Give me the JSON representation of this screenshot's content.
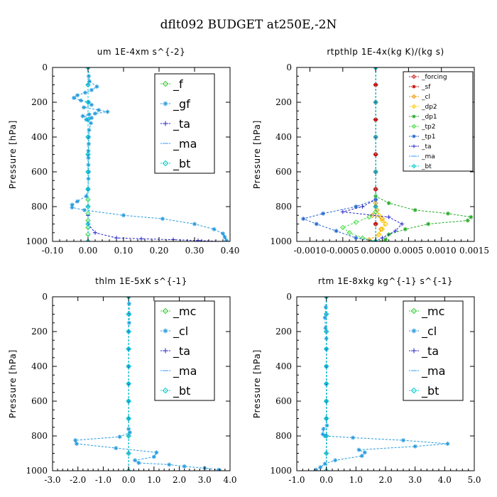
{
  "figure_title": "dflt092  BUDGET at250E,-2N",
  "chart_data": [
    {
      "type": "line",
      "title": "um   1E-4xm s^{-2}",
      "ylabel": "Pressure [hPa]",
      "xlim": [
        -0.1,
        0.4
      ],
      "ylim": [
        1000,
        0
      ],
      "xticks": [
        -0.1,
        0.0,
        0.1,
        0.2,
        0.3,
        0.4
      ],
      "xtick_labels": [
        "-0.10",
        "0.00",
        "0.10",
        "0.20",
        "0.30",
        "0.40"
      ],
      "yticks": [
        0,
        200,
        400,
        600,
        800,
        1000
      ],
      "legend_position": "top-right",
      "series": [
        {
          "name": "_f",
          "color": "#33cc33",
          "marker": "diamond",
          "x": [
            0,
            0,
            0,
            0,
            0,
            0,
            0,
            0,
            0,
            0,
            0,
            0,
            0,
            0,
            0
          ],
          "y": [
            0,
            100,
            200,
            300,
            400,
            500,
            600,
            700,
            760,
            800,
            840,
            880,
            920,
            960,
            1000
          ]
        },
        {
          "name": "_gf",
          "color": "#2299dd",
          "marker": "star",
          "x": [
            0.001,
            0.002,
            0.004,
            0.025,
            0.01,
            -0.008,
            -0.03,
            -0.04,
            -0.02,
            0.002,
            0.01,
            -0.012,
            0.03,
            0.055,
            0.02,
            0.003,
            -0.015,
            0.01,
            -0.005,
            0.008,
            0.003,
            0.002,
            0.002,
            0.001,
            0.001,
            0.001,
            0.002,
            0.001,
            0.0,
            -0.005,
            -0.03,
            -0.045,
            -0.045,
            -0.01,
            0.1,
            0.21,
            0.3,
            0.355,
            0.38,
            0.385,
            0.39
          ],
          "y": [
            0,
            50,
            80,
            110,
            130,
            145,
            160,
            175,
            190,
            200,
            215,
            230,
            245,
            255,
            265,
            270,
            280,
            290,
            300,
            320,
            360,
            400,
            440,
            480,
            520,
            560,
            600,
            640,
            700,
            740,
            770,
            790,
            805,
            820,
            850,
            870,
            900,
            930,
            955,
            975,
            995
          ]
        },
        {
          "name": "_ta",
          "color": "#2222cc",
          "marker": "plus",
          "x": [
            0,
            0,
            0,
            0,
            0,
            0,
            0,
            0,
            0,
            0,
            0,
            0.02,
            0.08,
            0.15,
            0.24,
            0.31,
            0.38
          ],
          "y": [
            0,
            100,
            200,
            300,
            400,
            500,
            600,
            700,
            800,
            850,
            900,
            950,
            980,
            985,
            990,
            995,
            1000
          ]
        },
        {
          "name": "_ma",
          "color": "#3399ff",
          "marker": "dash",
          "x": [
            0,
            0,
            0,
            0,
            0,
            0,
            0,
            0,
            0,
            0,
            0
          ],
          "y": [
            0,
            100,
            200,
            300,
            400,
            500,
            600,
            700,
            800,
            900,
            1000
          ]
        },
        {
          "name": "_bt",
          "color": "#00cccc",
          "marker": "diamond",
          "x": [
            0,
            0,
            0,
            0,
            0,
            0,
            0,
            0,
            0,
            0,
            0
          ],
          "y": [
            0,
            100,
            200,
            300,
            400,
            500,
            600,
            700,
            800,
            900,
            1000
          ]
        }
      ]
    },
    {
      "type": "line",
      "title": "rtpthlp   1E-4x(kg K)/(kg s)",
      "ylabel": "Pressure [hPa]",
      "xlim": [
        -0.0012,
        0.0015
      ],
      "ylim": [
        1000,
        0
      ],
      "xticks": [
        -0.001,
        -0.0005,
        0.0,
        0.0005,
        0.001,
        0.0015
      ],
      "xtick_labels": [
        "-0.0010",
        "-0.0005",
        "0.0000",
        "0.0005",
        "0.0010",
        "0.0015"
      ],
      "yticks": [
        0,
        200,
        400,
        600,
        800,
        1000
      ],
      "legend_position": "top-right",
      "series": [
        {
          "name": "_forcing",
          "color": "#cc2222",
          "marker": "diamond",
          "x": [
            0,
            0,
            0,
            0,
            0,
            0,
            0,
            0,
            0,
            0,
            0
          ],
          "y": [
            0,
            100,
            200,
            300,
            400,
            500,
            600,
            700,
            800,
            900,
            1000
          ]
        },
        {
          "name": "_sf",
          "color": "#cc0000",
          "marker": "star",
          "x": [
            0,
            0,
            0,
            0,
            0,
            0,
            0,
            0,
            0,
            0,
            0
          ],
          "y": [
            0,
            100,
            200,
            300,
            400,
            500,
            600,
            700,
            800,
            900,
            1000
          ]
        },
        {
          "name": "_cl",
          "color": "#ee9900",
          "marker": "diamond",
          "x": [
            0,
            0,
            2e-05,
            -5e-05,
            0.0001,
            0.00015,
            8e-05,
            5e-05,
            -0.0001,
            0
          ],
          "y": [
            0,
            780,
            820,
            850,
            870,
            900,
            930,
            960,
            990,
            1000
          ]
        },
        {
          "name": "_dp2",
          "color": "#ffcc00",
          "marker": "diamond",
          "x": [
            0,
            0,
            5e-05,
            0.0001,
            0.00015,
            0.0001,
            5e-05,
            0
          ],
          "y": [
            0,
            800,
            850,
            880,
            900,
            930,
            960,
            1000
          ]
        },
        {
          "name": "_dp1",
          "color": "#22aa22",
          "marker": "star",
          "x": [
            0,
            0,
            0.0002,
            0.0006,
            0.0011,
            0.00145,
            0.0014,
            0.0008,
            0.00045,
            0.0002,
            0.00015,
            0
          ],
          "y": [
            0,
            740,
            780,
            820,
            840,
            860,
            880,
            900,
            930,
            960,
            990,
            1000
          ]
        },
        {
          "name": "_tp2",
          "color": "#44dd44",
          "marker": "diamond",
          "x": [
            0,
            0,
            -0.0001,
            -0.0003,
            -0.0005,
            -0.0004,
            -0.0002,
            0
          ],
          "y": [
            0,
            830,
            860,
            890,
            920,
            950,
            980,
            1000
          ]
        },
        {
          "name": "_tp1",
          "color": "#2266cc",
          "marker": "star",
          "x": [
            0,
            0,
            -0.0003,
            -0.0008,
            -0.0011,
            -0.0009,
            -0.0006,
            -0.0003,
            0
          ],
          "y": [
            0,
            760,
            800,
            840,
            870,
            900,
            940,
            980,
            1000
          ]
        },
        {
          "name": "_ta",
          "color": "#2222cc",
          "marker": "plus",
          "x": [
            0,
            0,
            -0.0002,
            -0.0005,
            0.0002,
            0.0004,
            0.0003,
            0.0001,
            0
          ],
          "y": [
            0,
            760,
            800,
            830,
            860,
            900,
            940,
            980,
            1000
          ]
        },
        {
          "name": "_ma",
          "color": "#3399ff",
          "marker": "dash",
          "x": [
            0,
            0,
            0,
            0,
            0,
            0
          ],
          "y": [
            0,
            200,
            400,
            600,
            800,
            1000
          ]
        },
        {
          "name": "_bt",
          "color": "#00cccc",
          "marker": "diamond",
          "x": [
            0,
            0,
            0,
            0,
            0,
            0
          ],
          "y": [
            0,
            200,
            400,
            600,
            800,
            1000
          ]
        }
      ]
    },
    {
      "type": "line",
      "title": "thlm   1E-5xK  s^{-1}",
      "ylabel": "Pressure [hPa]",
      "xlim": [
        -3.0,
        4.0
      ],
      "ylim": [
        1000,
        0
      ],
      "xticks": [
        -3.0,
        -2.0,
        -1.0,
        0.0,
        1.0,
        2.0,
        3.0,
        4.0
      ],
      "xtick_labels": [
        "-3.0",
        "-2.0",
        "-1.0",
        "0.0",
        "1.0",
        "2.0",
        "3.0",
        "4.0"
      ],
      "yticks": [
        0,
        200,
        400,
        600,
        800,
        1000
      ],
      "legend_position": "top-right",
      "series": [
        {
          "name": "_mc",
          "color": "#33cc33",
          "marker": "diamond",
          "x": [
            0,
            0,
            0,
            0,
            0,
            0,
            0,
            0,
            0,
            0,
            0
          ],
          "y": [
            0,
            100,
            200,
            300,
            400,
            500,
            600,
            700,
            800,
            900,
            1000
          ]
        },
        {
          "name": "_cl",
          "color": "#2299dd",
          "marker": "star",
          "x": [
            0,
            0.02,
            0.03,
            0.02,
            0,
            0,
            0,
            0,
            0,
            0,
            0,
            0.05,
            -0.35,
            -2.1,
            -2.05,
            -0.5,
            1.1,
            1.0,
            0.25,
            0.4,
            1.6,
            2.2,
            3.0,
            3.55,
            3.6
          ],
          "y": [
            0,
            40,
            100,
            150,
            200,
            300,
            400,
            500,
            600,
            700,
            760,
            780,
            805,
            825,
            845,
            870,
            895,
            920,
            940,
            955,
            965,
            975,
            985,
            995,
            1000
          ]
        },
        {
          "name": "_ta",
          "color": "#2222cc",
          "marker": "plus",
          "x": [
            0,
            0,
            0,
            0,
            0,
            0,
            0,
            0,
            0,
            0,
            0
          ],
          "y": [
            0,
            100,
            200,
            300,
            400,
            500,
            600,
            700,
            800,
            900,
            1000
          ]
        },
        {
          "name": "_ma",
          "color": "#3399ff",
          "marker": "dash",
          "x": [
            0,
            0,
            0,
            0,
            0,
            0,
            0,
            0,
            0,
            0,
            0
          ],
          "y": [
            0,
            100,
            200,
            300,
            400,
            500,
            600,
            700,
            800,
            900,
            1000
          ]
        },
        {
          "name": "_bt",
          "color": "#00cccc",
          "marker": "diamond",
          "x": [
            0,
            0,
            0,
            0,
            0,
            0,
            0,
            0,
            0,
            0,
            0
          ],
          "y": [
            0,
            100,
            200,
            300,
            400,
            500,
            600,
            700,
            800,
            900,
            1000
          ]
        }
      ]
    },
    {
      "type": "line",
      "title": "rtm   1E-8xkg kg^{-1} s^{-1}",
      "ylabel": "Pressure [hPa]",
      "xlim": [
        -1.0,
        5.0
      ],
      "ylim": [
        1000,
        0
      ],
      "xticks": [
        -1.0,
        0.0,
        1.0,
        2.0,
        3.0,
        4.0,
        5.0
      ],
      "xtick_labels": [
        "-1.0",
        "0.0",
        "1.0",
        "2.0",
        "3.0",
        "4.0",
        "5.0"
      ],
      "yticks": [
        0,
        200,
        400,
        600,
        800,
        1000
      ],
      "legend_position": "top-right",
      "series": [
        {
          "name": "_mc",
          "color": "#33cc33",
          "marker": "diamond",
          "x": [
            0,
            0,
            0,
            0,
            0,
            0,
            0,
            0,
            0,
            0,
            0
          ],
          "y": [
            0,
            100,
            200,
            300,
            400,
            500,
            600,
            700,
            800,
            900,
            1000
          ]
        },
        {
          "name": "_cl",
          "color": "#2299dd",
          "marker": "star",
          "x": [
            0,
            -0.02,
            -0.05,
            -0.03,
            0,
            0,
            0,
            0,
            0,
            0,
            0.02,
            -0.1,
            -0.12,
            -0.05,
            0.9,
            2.6,
            4.1,
            3.0,
            1.1,
            1.3,
            1.2,
            0.3,
            -0.05,
            -0.2,
            -0.35
          ],
          "y": [
            0,
            60,
            120,
            180,
            240,
            300,
            400,
            500,
            600,
            700,
            740,
            760,
            790,
            800,
            810,
            825,
            845,
            860,
            880,
            895,
            915,
            940,
            960,
            980,
            995
          ]
        },
        {
          "name": "_ta",
          "color": "#2222cc",
          "marker": "plus",
          "x": [
            0,
            0,
            0,
            0,
            0,
            0,
            0,
            0,
            0,
            0,
            0
          ],
          "y": [
            0,
            100,
            200,
            300,
            400,
            500,
            600,
            700,
            800,
            900,
            1000
          ]
        },
        {
          "name": "_ma",
          "color": "#3399ff",
          "marker": "dash",
          "x": [
            0,
            0,
            0,
            0,
            0,
            0,
            0,
            0,
            0,
            0,
            0
          ],
          "y": [
            0,
            100,
            200,
            300,
            400,
            500,
            600,
            700,
            800,
            900,
            1000
          ]
        },
        {
          "name": "_bt",
          "color": "#00cccc",
          "marker": "diamond",
          "x": [
            0,
            0,
            0,
            0,
            0,
            0,
            0,
            0,
            0,
            0,
            0
          ],
          "y": [
            0,
            100,
            200,
            300,
            400,
            500,
            600,
            700,
            800,
            900,
            1000
          ]
        }
      ]
    }
  ]
}
